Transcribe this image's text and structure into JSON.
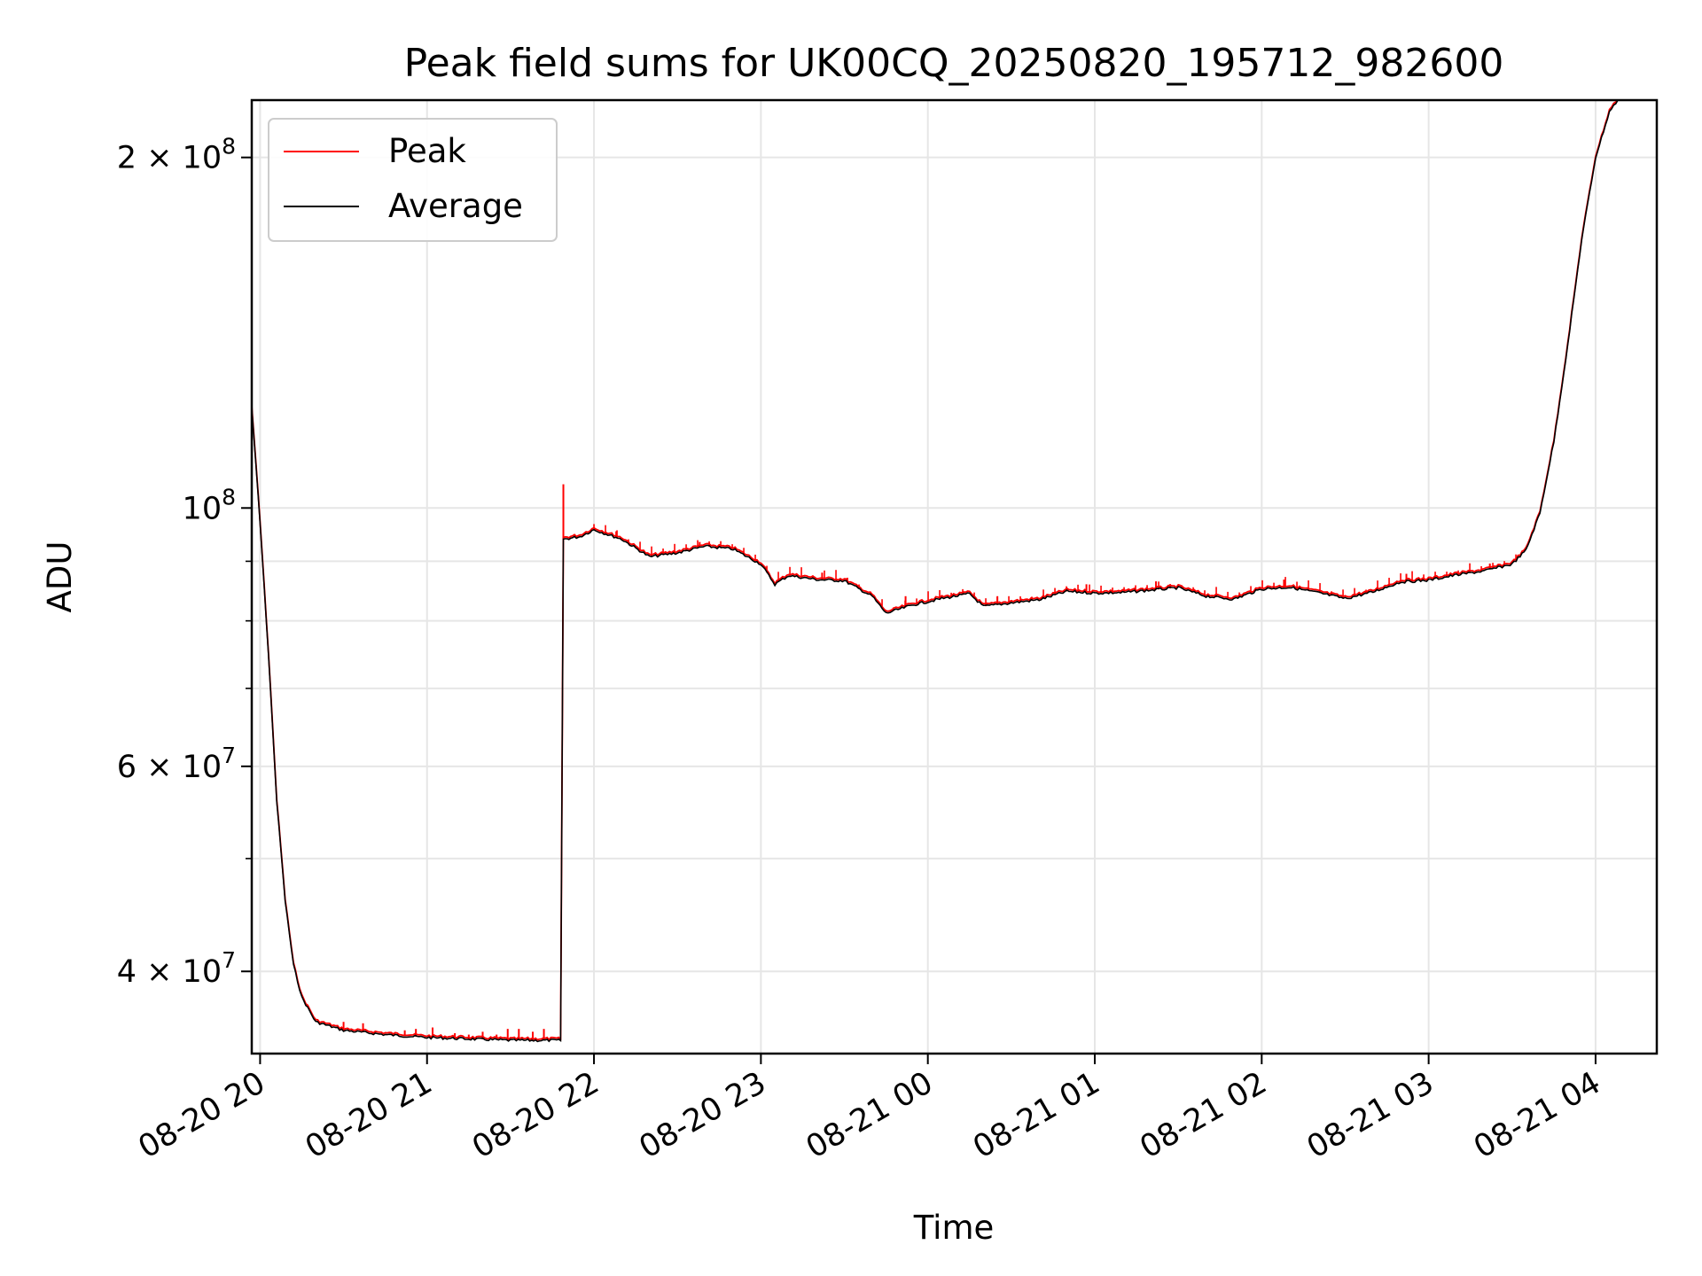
{
  "chart_data": {
    "type": "line",
    "title": "Peak field sums for UK00CQ_20250820_195712_982600",
    "xlabel": "Time",
    "ylabel": "ADU",
    "x_axis": {
      "type": "time",
      "range": [
        "2025-08-20 19:57",
        "2025-08-21 04:22"
      ],
      "ticks": [
        {
          "time": "2025-08-20 20:00",
          "label": "08-20 20"
        },
        {
          "time": "2025-08-20 21:00",
          "label": "08-20 21"
        },
        {
          "time": "2025-08-20 22:00",
          "label": "08-20 22"
        },
        {
          "time": "2025-08-20 23:00",
          "label": "08-20 23"
        },
        {
          "time": "2025-08-21 00:00",
          "label": "08-21 00"
        },
        {
          "time": "2025-08-21 01:00",
          "label": "08-21 01"
        },
        {
          "time": "2025-08-21 02:00",
          "label": "08-21 02"
        },
        {
          "time": "2025-08-21 03:00",
          "label": "08-21 03"
        },
        {
          "time": "2025-08-21 04:00",
          "label": "08-21 04"
        }
      ]
    },
    "y_axis": {
      "scale": "log",
      "range": [
        34000000,
        224000000
      ],
      "major_ticks": [
        {
          "value": 40000000,
          "label_base": "4 × 10",
          "label_exp": "7"
        },
        {
          "value": 60000000,
          "label_base": "6 × 10",
          "label_exp": "7"
        },
        {
          "value": 100000000,
          "label_base": "10",
          "label_exp": "8"
        },
        {
          "value": 200000000,
          "label_base": "2 × 10",
          "label_exp": "8"
        }
      ],
      "minor_tick_values": [
        50000000,
        70000000,
        80000000,
        90000000
      ]
    },
    "grid": true,
    "legend": {
      "placement": "upper-left"
    },
    "series": [
      {
        "name": "Average",
        "color": "#000000",
        "points": [
          [
            "2025-08-20 19:57",
            122000000
          ],
          [
            "2025-08-20 20:00",
            97000000
          ],
          [
            "2025-08-20 20:03",
            75000000
          ],
          [
            "2025-08-20 20:06",
            56000000
          ],
          [
            "2025-08-20 20:09",
            46000000
          ],
          [
            "2025-08-20 20:12",
            40500000
          ],
          [
            "2025-08-20 20:15",
            38000000
          ],
          [
            "2025-08-20 20:20",
            36200000
          ],
          [
            "2025-08-20 20:30",
            35600000
          ],
          [
            "2025-08-20 20:45",
            35300000
          ],
          [
            "2025-08-20 21:00",
            35100000
          ],
          [
            "2025-08-20 21:15",
            35000000
          ],
          [
            "2025-08-20 21:30",
            34900000
          ],
          [
            "2025-08-20 21:48",
            34900000
          ],
          [
            "2025-08-20 21:49",
            94000000
          ],
          [
            "2025-08-20 21:55",
            94500000
          ],
          [
            "2025-08-20 22:00",
            95800000
          ],
          [
            "2025-08-20 22:10",
            94000000
          ],
          [
            "2025-08-20 22:20",
            90800000
          ],
          [
            "2025-08-20 22:30",
            91500000
          ],
          [
            "2025-08-20 22:40",
            92700000
          ],
          [
            "2025-08-20 22:50",
            92200000
          ],
          [
            "2025-08-20 23:00",
            89500000
          ],
          [
            "2025-08-20 23:05",
            86000000
          ],
          [
            "2025-08-20 23:10",
            87500000
          ],
          [
            "2025-08-20 23:20",
            86800000
          ],
          [
            "2025-08-20 23:30",
            86600000
          ],
          [
            "2025-08-20 23:40",
            84000000
          ],
          [
            "2025-08-20 23:45",
            81200000
          ],
          [
            "2025-08-20 23:55",
            82600000
          ],
          [
            "2025-08-21 00:05",
            83600000
          ],
          [
            "2025-08-21 00:15",
            84400000
          ],
          [
            "2025-08-21 00:20",
            82300000
          ],
          [
            "2025-08-21 00:30",
            82900000
          ],
          [
            "2025-08-21 00:40",
            83400000
          ],
          [
            "2025-08-21 00:50",
            84800000
          ],
          [
            "2025-08-21 01:00",
            84500000
          ],
          [
            "2025-08-21 01:10",
            84600000
          ],
          [
            "2025-08-21 01:20",
            85000000
          ],
          [
            "2025-08-21 01:30",
            85400000
          ],
          [
            "2025-08-21 01:40",
            84000000
          ],
          [
            "2025-08-21 01:50",
            83500000
          ],
          [
            "2025-08-21 02:00",
            85200000
          ],
          [
            "2025-08-21 02:10",
            85500000
          ],
          [
            "2025-08-21 02:20",
            84600000
          ],
          [
            "2025-08-21 02:30",
            83600000
          ],
          [
            "2025-08-21 02:40",
            84700000
          ],
          [
            "2025-08-21 02:50",
            86400000
          ],
          [
            "2025-08-21 03:00",
            86700000
          ],
          [
            "2025-08-21 03:10",
            87600000
          ],
          [
            "2025-08-21 03:20",
            88300000
          ],
          [
            "2025-08-21 03:30",
            89500000
          ],
          [
            "2025-08-21 03:35",
            92000000
          ],
          [
            "2025-08-21 03:40",
            99000000
          ],
          [
            "2025-08-21 03:45",
            114000000
          ],
          [
            "2025-08-21 03:50",
            138000000
          ],
          [
            "2025-08-21 03:55",
            170000000
          ],
          [
            "2025-08-21 04:00",
            200000000
          ],
          [
            "2025-08-21 04:05",
            219000000
          ],
          [
            "2025-08-21 04:08",
            224000000
          ]
        ]
      },
      {
        "name": "Peak",
        "color": "#ff0000",
        "baseline": "Average",
        "spikes": [
          [
            "2025-08-20 20:30",
            36200000
          ],
          [
            "2025-08-20 20:37",
            36100000
          ],
          [
            "2025-08-20 20:52",
            35600000
          ],
          [
            "2025-08-20 20:56",
            35700000
          ],
          [
            "2025-08-20 21:02",
            35800000
          ],
          [
            "2025-08-20 21:10",
            35400000
          ],
          [
            "2025-08-20 21:15",
            35300000
          ],
          [
            "2025-08-20 21:20",
            35500000
          ],
          [
            "2025-08-20 21:25",
            35300000
          ],
          [
            "2025-08-20 21:29",
            35700000
          ],
          [
            "2025-08-20 21:33",
            35700000
          ],
          [
            "2025-08-20 21:38",
            35500000
          ],
          [
            "2025-08-20 21:42",
            35700000
          ],
          [
            "2025-08-20 21:49",
            104800000
          ],
          [
            "2025-08-20 22:08",
            95500000
          ],
          [
            "2025-08-20 22:38",
            93500000
          ],
          [
            "2025-08-20 23:22",
            88000000
          ],
          [
            "2025-08-20 23:52",
            84000000
          ],
          [
            "2025-08-21 00:25",
            84000000
          ],
          [
            "2025-08-21 00:57",
            86000000
          ],
          [
            "2025-08-21 01:22",
            86500000
          ],
          [
            "2025-08-21 02:08",
            86800000
          ],
          [
            "2025-08-21 02:52",
            87800000
          ],
          [
            "2025-08-21 03:22",
            89600000
          ]
        ]
      }
    ]
  }
}
